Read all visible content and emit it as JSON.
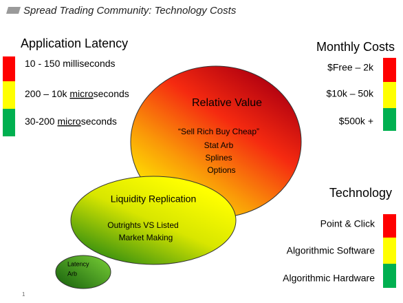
{
  "header": {
    "title": "Spread Trading Community: Technology Costs"
  },
  "latency": {
    "title": "Application Latency",
    "items": [
      [
        {
          "text": "10 - 150 milliseconds"
        }
      ],
      [
        {
          "text": "200 – 10k "
        },
        {
          "text": "micro",
          "underline": true
        },
        {
          "text": "seconds"
        }
      ],
      [
        {
          "text": "30-200 "
        },
        {
          "text": "micro",
          "underline": true
        },
        {
          "text": "seconds"
        }
      ]
    ]
  },
  "costs": {
    "title": "Monthly Costs",
    "items": [
      "$Free – 2k",
      "$10k – 50k",
      "$500k +"
    ]
  },
  "technology": {
    "title": "Technology",
    "items": [
      "Point & Click",
      "Algorithmic Software",
      "Algorithmic Hardware"
    ]
  },
  "bubbles": [
    {
      "title": "Relative Value",
      "lines": [
        "“Sell Rich Buy Cheap”",
        "Stat Arb",
        "Splines",
        "Options"
      ]
    },
    {
      "title": "Liquidity Replication",
      "lines": [
        "Outrights VS Listed",
        "Market Making"
      ]
    },
    {
      "title": "Latency",
      "lines": [
        "Arb"
      ]
    }
  ],
  "page_number": "1"
}
